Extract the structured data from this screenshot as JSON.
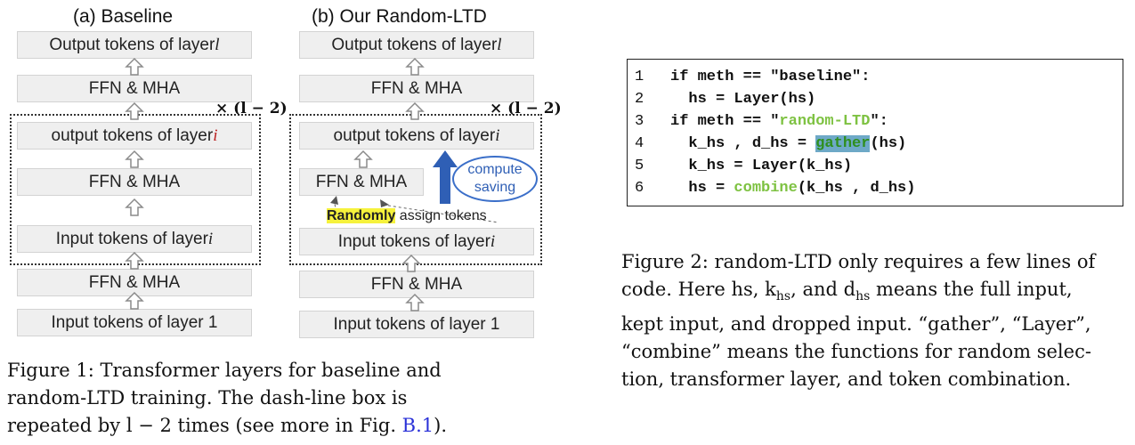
{
  "fig1": {
    "baseline": {
      "title": "(a) Baseline",
      "boxes": [
        "Output tokens of layer ",
        "FFN & MHA",
        "output tokens of layer ",
        "FFN & MHA",
        "Input tokens of layer ",
        "FFN & MHA",
        "Input tokens of layer 1"
      ],
      "var_l": "l",
      "var_i": "i",
      "repeat": "× (l − 2)"
    },
    "ltd": {
      "title": "(b) Our Random-LTD",
      "boxes": [
        "Output tokens of layer ",
        "FFN & MHA",
        "output tokens of layer ",
        "FFN & MHA",
        "Input tokens of layer ",
        "FFN & MHA",
        "Input tokens of layer 1"
      ],
      "var_l": "l",
      "var_i": "i",
      "repeat": "× (l − 2)",
      "compute_saving": [
        "compute",
        "saving"
      ],
      "randomly": "Randomly",
      "assign_tokens": " assign tokens"
    },
    "caption": [
      "Figure 1: Transformer layers for baseline and",
      "random-LTD training. The dash-line box is",
      "repeated by l − 2 times (see more in Fig. ",
      "B.1",
      ")."
    ]
  },
  "code": {
    "lines": [
      {
        "num": "1",
        "a": "if meth == \"baseline\":"
      },
      {
        "num": "2",
        "a": "  hs = Layer(hs)"
      },
      {
        "num": "3",
        "a": "if meth == \"",
        "green": "random-LTD",
        "b": "\":"
      },
      {
        "num": "4",
        "a": "  k_hs , d_hs = ",
        "hl": "gather",
        "b": "(hs)"
      },
      {
        "num": "5",
        "a": "  k_hs = Layer(k_hs)"
      },
      {
        "num": "6",
        "a": "  hs = ",
        "green": "combine",
        "b": "(k_hs , d_hs)"
      }
    ]
  },
  "fig2": {
    "caption": [
      "Figure 2: random-LTD only requires a few lines of",
      "code. Here hs, k",
      "hs",
      ", and d",
      "hs",
      " means the full input,",
      "kept input, and dropped input. “gather”, “Layer”,",
      "“combine” means the functions for random selec-",
      "tion, transformer layer, and token combination."
    ]
  }
}
